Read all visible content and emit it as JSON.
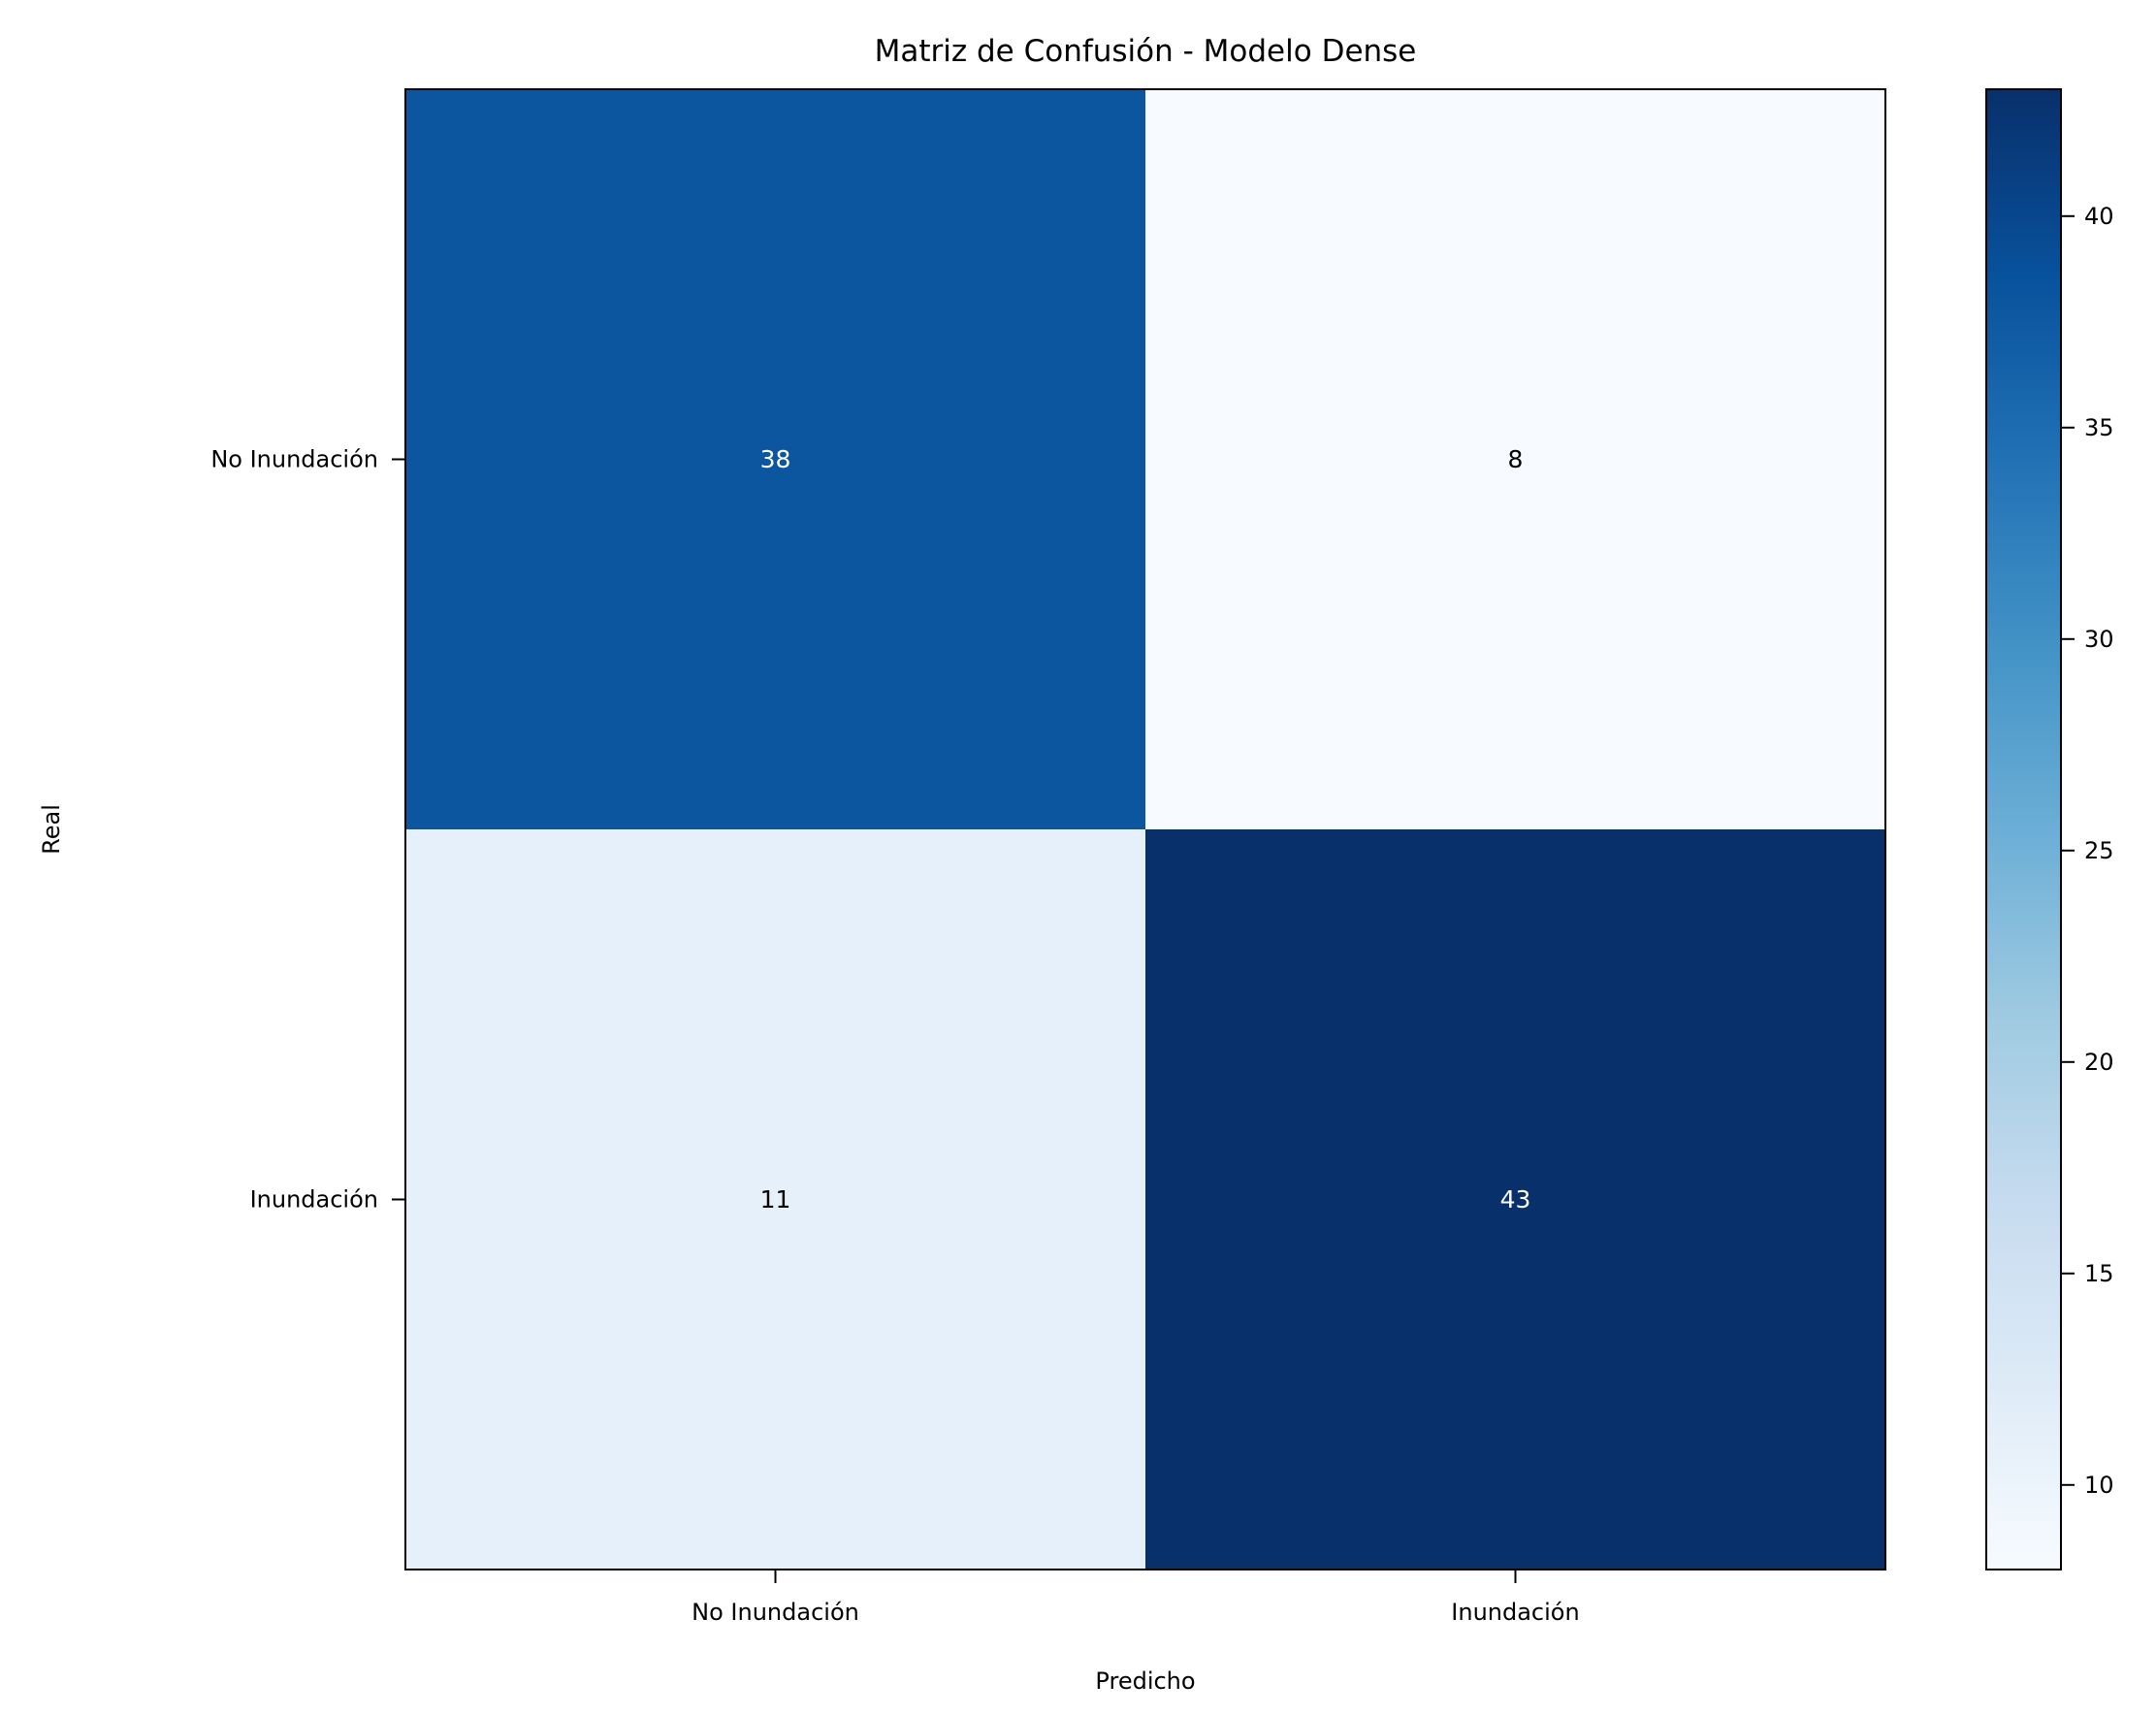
{
  "chart_data": {
    "type": "heatmap",
    "title": "Matriz de Confusión - Modelo Dense",
    "xlabel": "Predicho",
    "ylabel": "Real",
    "x_categories": [
      "No Inundación",
      "Inundación"
    ],
    "y_categories": [
      "No Inundación",
      "Inundación"
    ],
    "values": [
      [
        38,
        8
      ],
      [
        11,
        43
      ]
    ],
    "colormap": "Blues",
    "vmin": 8,
    "vmax": 43,
    "colorbar": {
      "ticks": [
        10,
        15,
        20,
        25,
        30,
        35,
        40
      ],
      "tick_labels": [
        "10",
        "15",
        "20",
        "25",
        "30",
        "35",
        "40"
      ]
    },
    "text_colors": {
      "dark_bg": "#ffffff",
      "light_bg": "#000000"
    },
    "grid": false,
    "legend": "colorbar-right"
  }
}
